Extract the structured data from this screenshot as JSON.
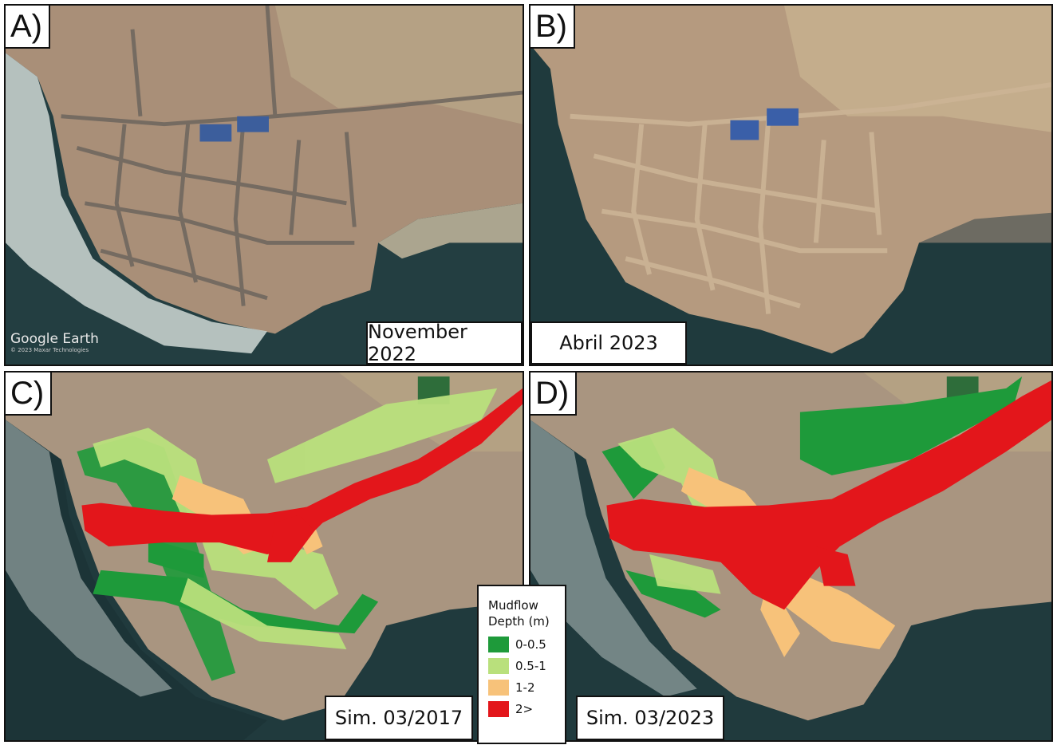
{
  "panels": [
    {
      "letter": "A)",
      "date_label": "November 2022",
      "watermark": "Google Earth",
      "watermark_sub": "© 2023 Maxar Technologies"
    },
    {
      "letter": "B)",
      "date_label": "Abril 2023"
    },
    {
      "letter": "C)",
      "date_label": "Sim. 03/2017"
    },
    {
      "letter": "D)",
      "date_label": "Sim. 03/2023"
    }
  ],
  "legend": {
    "title_line1": "Mudflow",
    "title_line2": "Depth (m)",
    "classes": [
      {
        "label": "0-0.5",
        "color": "#1e9a3a"
      },
      {
        "label": "0.5-1",
        "color": "#b9e07c"
      },
      {
        "label": "1-2",
        "color": "#f7c27a"
      },
      {
        "label": "2>",
        "color": "#e3161b"
      }
    ]
  },
  "colors": {
    "sea_deep": "#213c3f",
    "surf": "#c9d3d0",
    "land": "#b79d85",
    "street": "#6d655d",
    "sand": "#b6a88f"
  }
}
